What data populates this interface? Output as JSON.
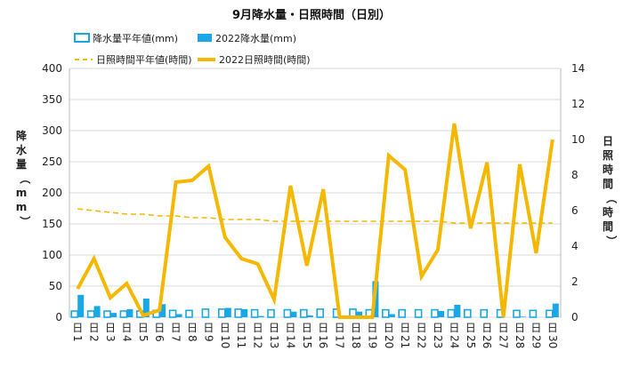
{
  "chart_data": {
    "type": "bar+line",
    "title": "9月降水量・日照時間（日別）",
    "categories": [
      "1日",
      "2日",
      "3日",
      "4日",
      "5日",
      "6日",
      "7日",
      "8日",
      "9日",
      "10日",
      "11日",
      "12日",
      "13日",
      "14日",
      "15日",
      "16日",
      "17日",
      "18日",
      "19日",
      "20日",
      "21日",
      "22日",
      "23日",
      "24日",
      "25日",
      "26日",
      "27日",
      "28日",
      "29日",
      "30日"
    ],
    "left_axis": {
      "label": "降水量（mm）",
      "ylim": [
        0,
        400
      ],
      "ticks": [
        0,
        50,
        100,
        150,
        200,
        250,
        300,
        350,
        400
      ]
    },
    "right_axis": {
      "label": "日照時間（時間）",
      "ylim": [
        0,
        14
      ],
      "ticks": [
        0,
        2,
        4,
        6,
        8,
        10,
        12,
        14
      ]
    },
    "series": [
      {
        "name": "降水量平年値(mm)",
        "kind": "bar",
        "axis": "left",
        "color": "#1aa7e6",
        "values": [
          10,
          10,
          10,
          10,
          10,
          11,
          11,
          11,
          13,
          13,
          13,
          12,
          12,
          12,
          12,
          13,
          13,
          13,
          12,
          12,
          12,
          12,
          12,
          12,
          12,
          12,
          12,
          11,
          11,
          11
        ]
      },
      {
        "name": "2022降水量(mm)",
        "kind": "bar",
        "axis": "left",
        "color": "#1aa7e6",
        "values": [
          36,
          18,
          7,
          13,
          30,
          21,
          5,
          0,
          0,
          15,
          13,
          2,
          0,
          9,
          3,
          0,
          0,
          9,
          58,
          5,
          0,
          0,
          10,
          20,
          0,
          0,
          0,
          1,
          0,
          22
        ]
      },
      {
        "name": "日照時間平年値(時間)",
        "kind": "line",
        "axis": "right",
        "color": "#f5b800",
        "dash": true,
        "values": [
          6.1,
          6.0,
          5.9,
          5.8,
          5.8,
          5.7,
          5.7,
          5.6,
          5.6,
          5.5,
          5.5,
          5.5,
          5.4,
          5.4,
          5.4,
          5.4,
          5.4,
          5.4,
          5.4,
          5.4,
          5.4,
          5.4,
          5.4,
          5.3,
          5.3,
          5.3,
          5.3,
          5.3,
          5.3,
          5.3
        ]
      },
      {
        "name": "2022日照時間(時間)",
        "kind": "line",
        "axis": "right",
        "color": "#f5b800",
        "values": [
          1.6,
          3.3,
          1.1,
          1.9,
          0.1,
          0.4,
          7.6,
          7.7,
          8.5,
          4.5,
          3.3,
          3.0,
          1.0,
          7.4,
          2.9,
          7.2,
          0.0,
          0.0,
          0.0,
          9.1,
          8.3,
          2.3,
          3.8,
          10.9,
          5.0,
          8.7,
          0.0,
          8.6,
          3.6,
          10.0
        ]
      }
    ],
    "grid": true,
    "legend_position": "top"
  }
}
